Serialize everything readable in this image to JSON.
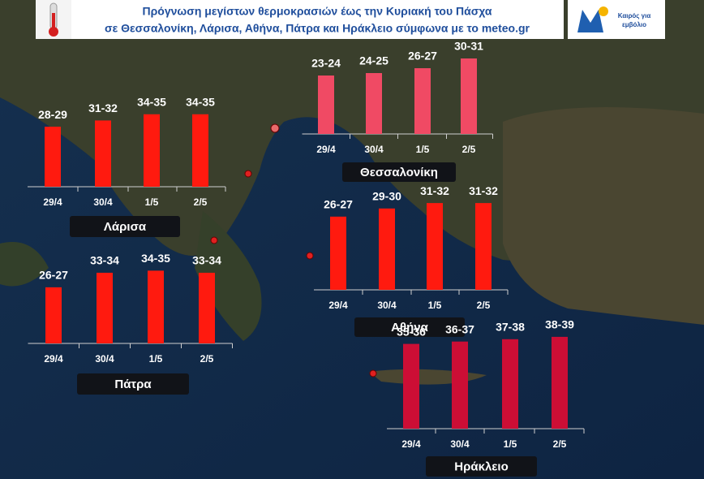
{
  "header": {
    "line1": "Πρόγνωση μεγίστων θερμοκρασιών  έως την Κυριακή του Πάσχα",
    "line2": "σε Θεσσαλονίκη, Λάρισα, Αθήνα, Πάτρα και Ηράκλειο σύμφωνα με το meteo.gr"
  },
  "logo": {
    "line1": "Καιρός για",
    "line2": "εμβόλιο"
  },
  "chart_data": [
    {
      "type": "bar",
      "title": "Λάρισα",
      "categories": [
        "29/4",
        "30/4",
        "1/5",
        "2/5"
      ],
      "values": [
        29,
        32,
        35,
        35
      ],
      "value_labels": [
        "28-29",
        "31-32",
        "34-35",
        "34-35"
      ],
      "color": "#ff1a0f"
    },
    {
      "type": "bar",
      "title": "Θεσσαλονίκη",
      "categories": [
        "29/4",
        "30/4",
        "1/5",
        "2/5"
      ],
      "values": [
        24,
        25,
        27,
        31
      ],
      "value_labels": [
        "23-24",
        "24-25",
        "26-27",
        "30-31"
      ],
      "color": "#f04a64"
    },
    {
      "type": "bar",
      "title": "Αθήνα",
      "categories": [
        "29/4",
        "30/4",
        "1/5",
        "2/5"
      ],
      "values": [
        27,
        30,
        32,
        32
      ],
      "value_labels": [
        "26-27",
        "29-30",
        "31-32",
        "31-32"
      ],
      "color": "#ff1a0f"
    },
    {
      "type": "bar",
      "title": "Πάτρα",
      "categories": [
        "29/4",
        "30/4",
        "1/5",
        "2/5"
      ],
      "values": [
        27,
        34,
        35,
        34
      ],
      "value_labels": [
        "26-27",
        "33-34",
        "34-35",
        "33-34"
      ],
      "color": "#ff1a0f"
    },
    {
      "type": "bar",
      "title": "Ηράκλειο",
      "categories": [
        "29/4",
        "30/4",
        "1/5",
        "2/5"
      ],
      "values": [
        36,
        37,
        38,
        39
      ],
      "value_labels": [
        "35-36",
        "36-37",
        "37-38",
        "38-39"
      ],
      "color": "#cc0e35"
    }
  ]
}
